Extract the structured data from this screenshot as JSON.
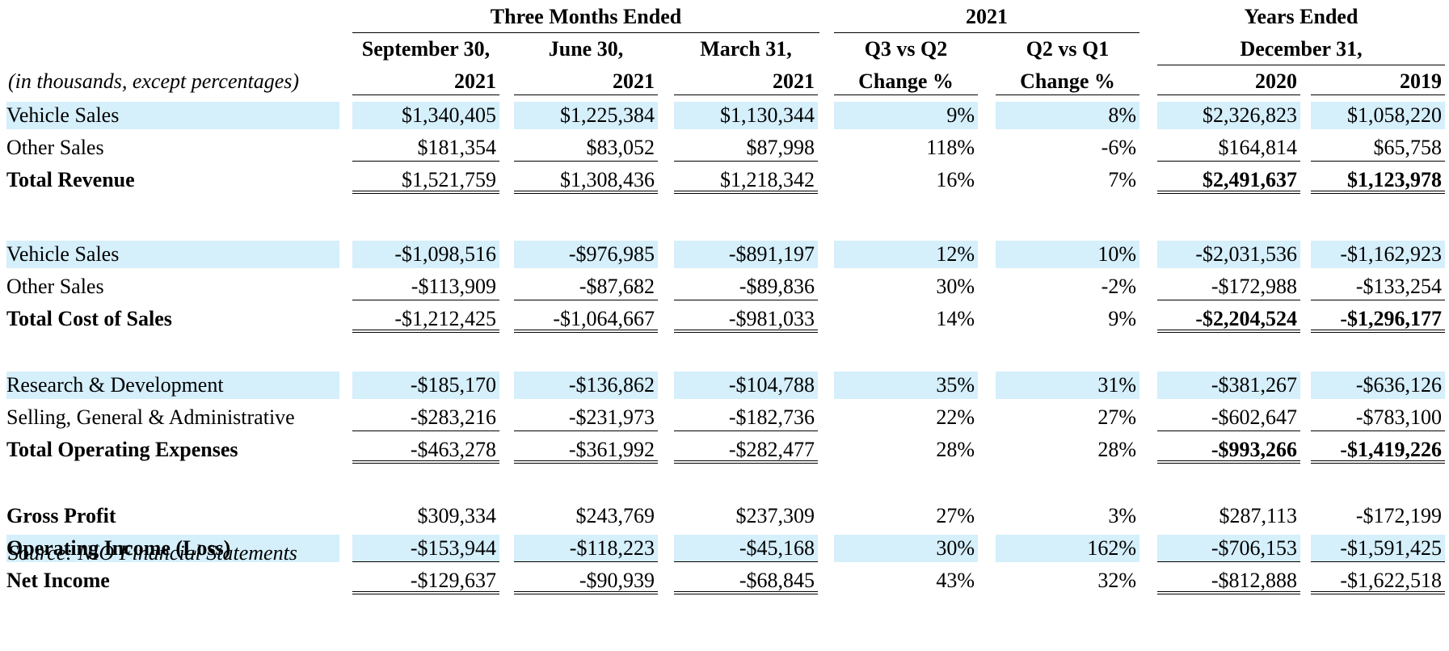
{
  "header": {
    "group_three_months": "Three Months Ended",
    "group_2021": "2021",
    "group_years": "Years Ended",
    "col1_line1": "September 30,",
    "col1_line2": "2021",
    "col2_line1": "June 30,",
    "col2_line2": "2021",
    "col3_line1": "March 31,",
    "col3_line2": "2021",
    "col4_line1": "Q3 vs Q2",
    "col4_line2": "Change %",
    "col5_line1": "Q2 vs Q1",
    "col5_line2": "Change %",
    "years_line2": "December 31,",
    "col6_year": "2020",
    "col7_year": "2019",
    "units_note": "(in thousands, except percentages)"
  },
  "rows": [
    {
      "label": "Vehicle Sales",
      "values": [
        "$1,340,405",
        "$1,225,384",
        "$1,130,344",
        "9%",
        "8%",
        "$2,326,823",
        "$1,058,220"
      ]
    },
    {
      "label": "Other Sales",
      "values": [
        "$181,354",
        "$83,052",
        "$87,998",
        "118%",
        "-6%",
        "$164,814",
        "$65,758"
      ]
    },
    {
      "label": "Total Revenue",
      "values": [
        "$1,521,759",
        "$1,308,436",
        "$1,218,342",
        "16%",
        "7%",
        "$2,491,637",
        "$1,123,978"
      ]
    },
    {
      "label": "Vehicle Sales",
      "values": [
        "-$1,098,516",
        "-$976,985",
        "-$891,197",
        "12%",
        "10%",
        "-$2,031,536",
        "-$1,162,923"
      ]
    },
    {
      "label": "Other Sales",
      "values": [
        "-$113,909",
        "-$87,682",
        "-$89,836",
        "30%",
        "-2%",
        "-$172,988",
        "-$133,254"
      ]
    },
    {
      "label": "Total Cost of Sales",
      "values": [
        "-$1,212,425",
        "-$1,064,667",
        "-$981,033",
        "14%",
        "9%",
        "-$2,204,524",
        "-$1,296,177"
      ]
    },
    {
      "label": "Research & Development",
      "values": [
        "-$185,170",
        "-$136,862",
        "-$104,788",
        "35%",
        "31%",
        "-$381,267",
        "-$636,126"
      ]
    },
    {
      "label": "Selling, General & Administrative",
      "values": [
        "-$283,216",
        "-$231,973",
        "-$182,736",
        "22%",
        "27%",
        "-$602,647",
        "-$783,100"
      ]
    },
    {
      "label": "Total Operating Expenses",
      "values": [
        "-$463,278",
        "-$361,992",
        "-$282,477",
        "28%",
        "28%",
        "-$993,266",
        "-$1,419,226"
      ]
    },
    {
      "label": "Gross Profit",
      "values": [
        "$309,334",
        "$243,769",
        "$237,309",
        "27%",
        "3%",
        "$287,113",
        "-$172,199"
      ]
    },
    {
      "label": "Operating Income (Loss)",
      "values": [
        "-$153,944",
        "-$118,223",
        "-$45,168",
        "30%",
        "162%",
        "-$706,153",
        "-$1,591,425"
      ]
    },
    {
      "label": "Net Income",
      "values": [
        "-$129,637",
        "-$90,939",
        "-$68,845",
        "43%",
        "32%",
        "-$812,888",
        "-$1,622,518"
      ]
    }
  ],
  "source_note": "Source: NIO Financial Statements",
  "colors": {
    "highlight": "#d5effb",
    "text": "#000000"
  }
}
